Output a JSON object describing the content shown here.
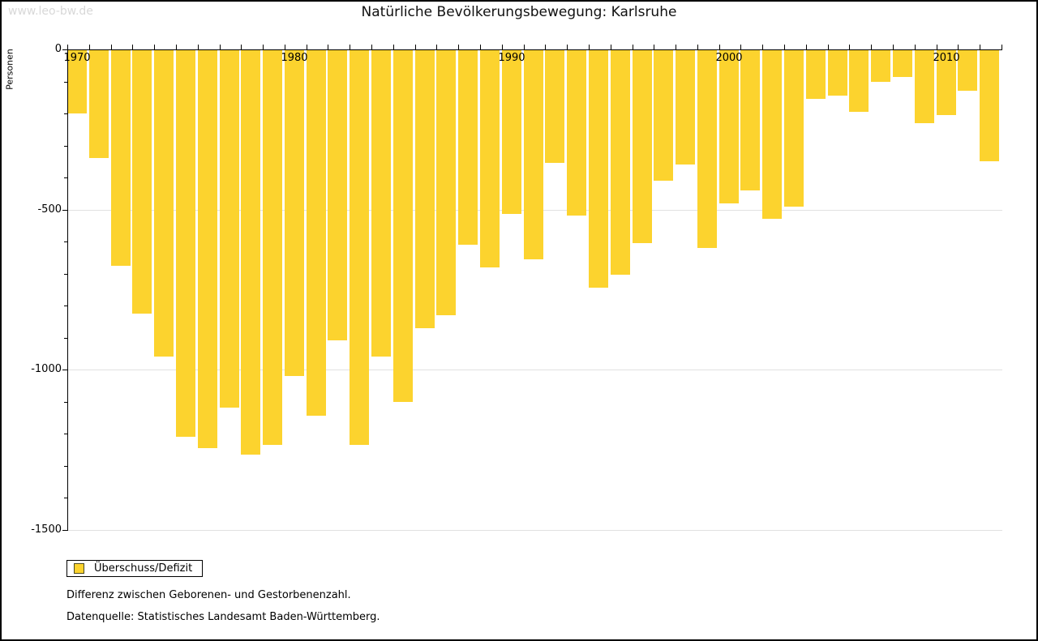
{
  "watermark": "www.leo-bw.de",
  "header": {
    "title": "Natürliche Bevölkerungsbewegung: Karlsruhe"
  },
  "chart_data": {
    "type": "bar",
    "title": "Natürliche Bevölkerungsbewegung: Karlsruhe",
    "xlabel": "",
    "ylabel": "Personen",
    "series_name": "Überschuss/Defizit",
    "bar_color": "#FCD32E",
    "grid": true,
    "legend_position": "bottom-left",
    "ylim": [
      -1500,
      0
    ],
    "ytick_values": [
      0,
      -500,
      -1000,
      -1500
    ],
    "ytick_labels": [
      "0",
      "-500",
      "-1000",
      "-1500"
    ],
    "minor_ytick_step": 100,
    "xtick_years": [
      1970,
      1980,
      1990,
      2000,
      2010
    ],
    "xtick_labels": [
      "1970",
      "1980",
      "1990",
      "2000",
      "2010"
    ],
    "categories": [
      1970,
      1971,
      1972,
      1973,
      1974,
      1975,
      1976,
      1977,
      1978,
      1979,
      1980,
      1981,
      1982,
      1983,
      1984,
      1985,
      1986,
      1987,
      1988,
      1989,
      1990,
      1991,
      1992,
      1993,
      1994,
      1995,
      1996,
      1997,
      1998,
      1999,
      2000,
      2001,
      2002,
      2003,
      2004,
      2005,
      2006,
      2007,
      2008,
      2009,
      2010,
      2011,
      2012
    ],
    "values": [
      -200,
      -340,
      -675,
      -825,
      -960,
      -1210,
      -1245,
      -1120,
      -1265,
      -1235,
      -1020,
      -1145,
      -910,
      -1235,
      -960,
      -1100,
      -870,
      -830,
      -610,
      -680,
      -515,
      -655,
      -355,
      -520,
      -745,
      -705,
      -605,
      -410,
      -360,
      -620,
      -480,
      -440,
      -530,
      -490,
      -155,
      -145,
      -195,
      -100,
      -85,
      -230,
      -205,
      -130,
      -350
    ]
  },
  "legend": {
    "label": "Überschuss/Defizit",
    "swatch_color": "#FCD32E"
  },
  "footnotes": {
    "line1": "Differenz zwischen Geborenen- und Gestorbenenzahl.",
    "line2": "Datenquelle: Statistisches Landesamt Baden-Württemberg."
  },
  "colors": {
    "bar": "#FCD32E",
    "gridline": "#e1e1e1",
    "axis": "#000000",
    "watermark": "#d8d8d8",
    "frame": "#000000"
  }
}
